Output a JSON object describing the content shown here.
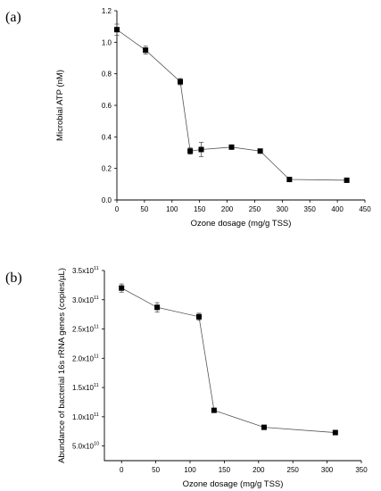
{
  "chart_data": [
    {
      "panel_label": "(a)",
      "type": "line",
      "xlabel": "Ozone dosage (mg/g TSS)",
      "ylabel": "Microbial ATP (nM)",
      "xlim": [
        0,
        450
      ],
      "ylim": [
        0,
        1.2
      ],
      "xticks": [
        "0",
        "50",
        "100",
        "150",
        "200",
        "250",
        "300",
        "350",
        "400",
        "450"
      ],
      "yticks": [
        "0.0",
        "0.2",
        "0.4",
        "0.6",
        "0.8",
        "1.0",
        "1.2"
      ],
      "grid": false,
      "marker": "square",
      "color": "#000000",
      "series": [
        {
          "x": [
            0,
            52,
            115,
            133,
            153,
            208,
            260,
            313,
            417
          ],
          "y": [
            1.08,
            0.95,
            0.75,
            0.31,
            0.32,
            0.335,
            0.31,
            0.13,
            0.125
          ],
          "yerr": [
            0.035,
            0.025,
            0.02,
            0.02,
            0.045,
            0.012,
            0.01,
            0.007,
            0.006
          ]
        }
      ]
    },
    {
      "panel_label": "(b)",
      "type": "line",
      "xlabel": "Ozone dosage (mg/g TSS)",
      "ylabel": "Abundance of bacterial 16s rRNA genes (copies/µL)",
      "xlim": [
        -25,
        350
      ],
      "ylim": [
        25000000000.0,
        350000000000.0
      ],
      "xticks": [
        "0",
        "50",
        "100",
        "150",
        "200",
        "250",
        "300",
        "350"
      ],
      "yticks": [
        {
          "mantissa": "5.0x10",
          "exp": "10"
        },
        {
          "mantissa": "1.0x10",
          "exp": "11"
        },
        {
          "mantissa": "1.5x10",
          "exp": "11"
        },
        {
          "mantissa": "2.0x10",
          "exp": "11"
        },
        {
          "mantissa": "2.5x10",
          "exp": "11"
        },
        {
          "mantissa": "3.0x10",
          "exp": "11"
        },
        {
          "mantissa": "3.5x10",
          "exp": "11"
        }
      ],
      "grid": false,
      "marker": "square",
      "color": "#000000",
      "series": [
        {
          "x": [
            0,
            52,
            113,
            135,
            208,
            312
          ],
          "y": [
            320000000000.0,
            287000000000.0,
            271000000000.0,
            111000000000.0,
            82000000000.0,
            73000000000.0
          ],
          "yerr": [
            7000000000.0,
            8000000000.0,
            6000000000.0,
            1500000000.0,
            2000000000.0,
            3500000000.0
          ]
        }
      ]
    }
  ]
}
